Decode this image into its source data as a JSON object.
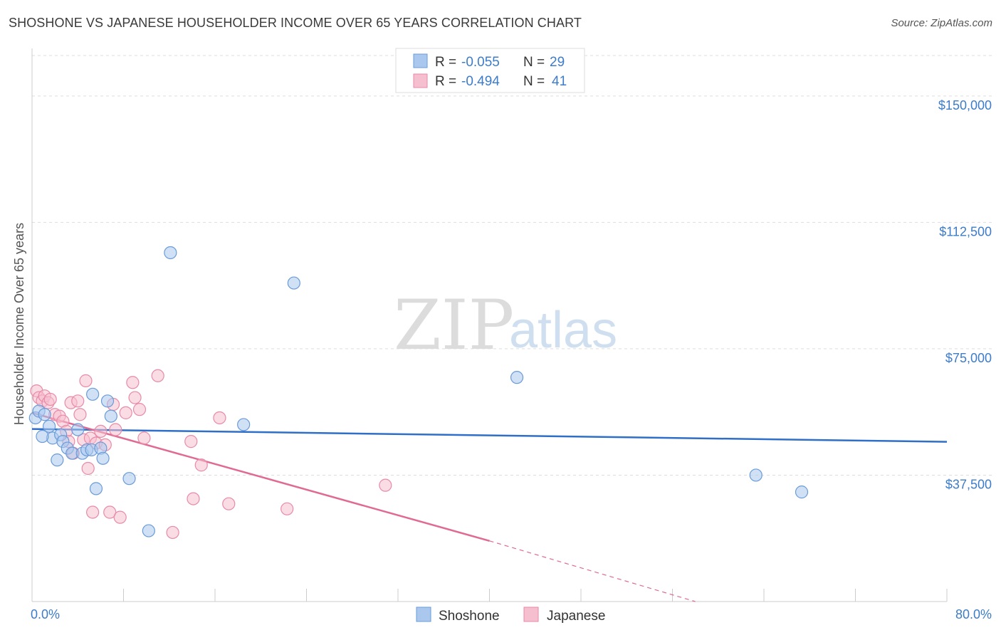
{
  "title": "SHOSHONE VS JAPANESE HOUSEHOLDER INCOME OVER 65 YEARS CORRELATION CHART",
  "source": "Source: ZipAtlas.com",
  "watermark": {
    "zip": "ZIP",
    "atlas": "atlas"
  },
  "colors": {
    "shoshone_fill": "#aac8ee",
    "shoshone_stroke": "#6a9bd8",
    "shoshone_line": "#2f6fc7",
    "japanese_fill": "#f6bfd0",
    "japanese_stroke": "#e88aa8",
    "japanese_line": "#e06a93",
    "tick_text": "#3d7cc9",
    "grid": "#dddddd"
  },
  "legend": {
    "rows": [
      {
        "r_label": "R =",
        "r_value": "-0.055",
        "n_label": "N =",
        "n_value": "29"
      },
      {
        "r_label": "R =",
        "r_value": "-0.494",
        "n_label": "N =",
        "n_value": "41"
      }
    ]
  },
  "bottom_legend": [
    "Shoshone",
    "Japanese"
  ],
  "chart_data": {
    "type": "scatter",
    "title": "SHOSHONE VS JAPANESE HOUSEHOLDER INCOME OVER 65 YEARS CORRELATION CHART",
    "xlabel": "",
    "ylabel": "Householder Income Over 65 years",
    "xlim": [
      0,
      80
    ],
    "ylim": [
      0,
      162000
    ],
    "x_tick_labels": [
      "0.0%",
      "80.0%"
    ],
    "y_ticks": [
      37500,
      75000,
      112500,
      150000
    ],
    "y_tick_labels": [
      "$37,500",
      "$75,000",
      "$112,500",
      "$150,000"
    ],
    "series": [
      {
        "name": "Shoshone",
        "points": [
          [
            0.3,
            54500
          ],
          [
            0.6,
            56500
          ],
          [
            1.1,
            55500
          ],
          [
            1.5,
            52000
          ],
          [
            1.8,
            48500
          ],
          [
            2.2,
            42000
          ],
          [
            2.5,
            49500
          ],
          [
            2.7,
            47500
          ],
          [
            3.1,
            45500
          ],
          [
            3.5,
            44000
          ],
          [
            4.0,
            51000
          ],
          [
            4.4,
            44000
          ],
          [
            4.8,
            45000
          ],
          [
            5.2,
            45000
          ],
          [
            5.3,
            61500
          ],
          [
            5.6,
            33500
          ],
          [
            6.0,
            45500
          ],
          [
            6.2,
            42500
          ],
          [
            6.6,
            59500
          ],
          [
            6.9,
            55000
          ],
          [
            8.5,
            36500
          ],
          [
            10.2,
            21000
          ],
          [
            12.1,
            103500
          ],
          [
            18.5,
            52500
          ],
          [
            22.9,
            94500
          ],
          [
            42.4,
            66500
          ],
          [
            63.3,
            37500
          ],
          [
            67.3,
            32500
          ],
          [
            0.9,
            49000
          ]
        ],
        "trend": {
          "x": [
            0,
            80
          ],
          "y": [
            51200,
            47400
          ]
        }
      },
      {
        "name": "Japanese",
        "points": [
          [
            0.4,
            62500
          ],
          [
            0.6,
            60500
          ],
          [
            0.9,
            59500
          ],
          [
            1.1,
            61000
          ],
          [
            1.4,
            59000
          ],
          [
            1.6,
            60000
          ],
          [
            2.0,
            55500
          ],
          [
            2.4,
            55000
          ],
          [
            2.7,
            53500
          ],
          [
            3.0,
            50500
          ],
          [
            3.2,
            47500
          ],
          [
            3.4,
            59000
          ],
          [
            3.6,
            44000
          ],
          [
            4.0,
            59500
          ],
          [
            4.2,
            55500
          ],
          [
            4.5,
            48000
          ],
          [
            4.7,
            65500
          ],
          [
            4.9,
            39500
          ],
          [
            5.1,
            48500
          ],
          [
            5.3,
            26500
          ],
          [
            5.6,
            47000
          ],
          [
            6.0,
            50500
          ],
          [
            6.4,
            46500
          ],
          [
            6.8,
            26500
          ],
          [
            7.1,
            58500
          ],
          [
            7.3,
            51000
          ],
          [
            7.7,
            25000
          ],
          [
            8.2,
            56000
          ],
          [
            8.8,
            65000
          ],
          [
            9.0,
            60500
          ],
          [
            9.4,
            57000
          ],
          [
            9.8,
            48500
          ],
          [
            11.0,
            67000
          ],
          [
            12.3,
            20500
          ],
          [
            13.9,
            47500
          ],
          [
            14.1,
            30500
          ],
          [
            14.8,
            40500
          ],
          [
            16.4,
            54500
          ],
          [
            17.2,
            29000
          ],
          [
            22.3,
            27500
          ],
          [
            30.9,
            34500
          ]
        ],
        "trend": {
          "x": [
            0,
            40
          ],
          "y": [
            56000,
            18000
          ]
        },
        "trend_dashed": {
          "x": [
            40,
            58
          ],
          "y": [
            18000,
            0
          ]
        }
      }
    ]
  }
}
